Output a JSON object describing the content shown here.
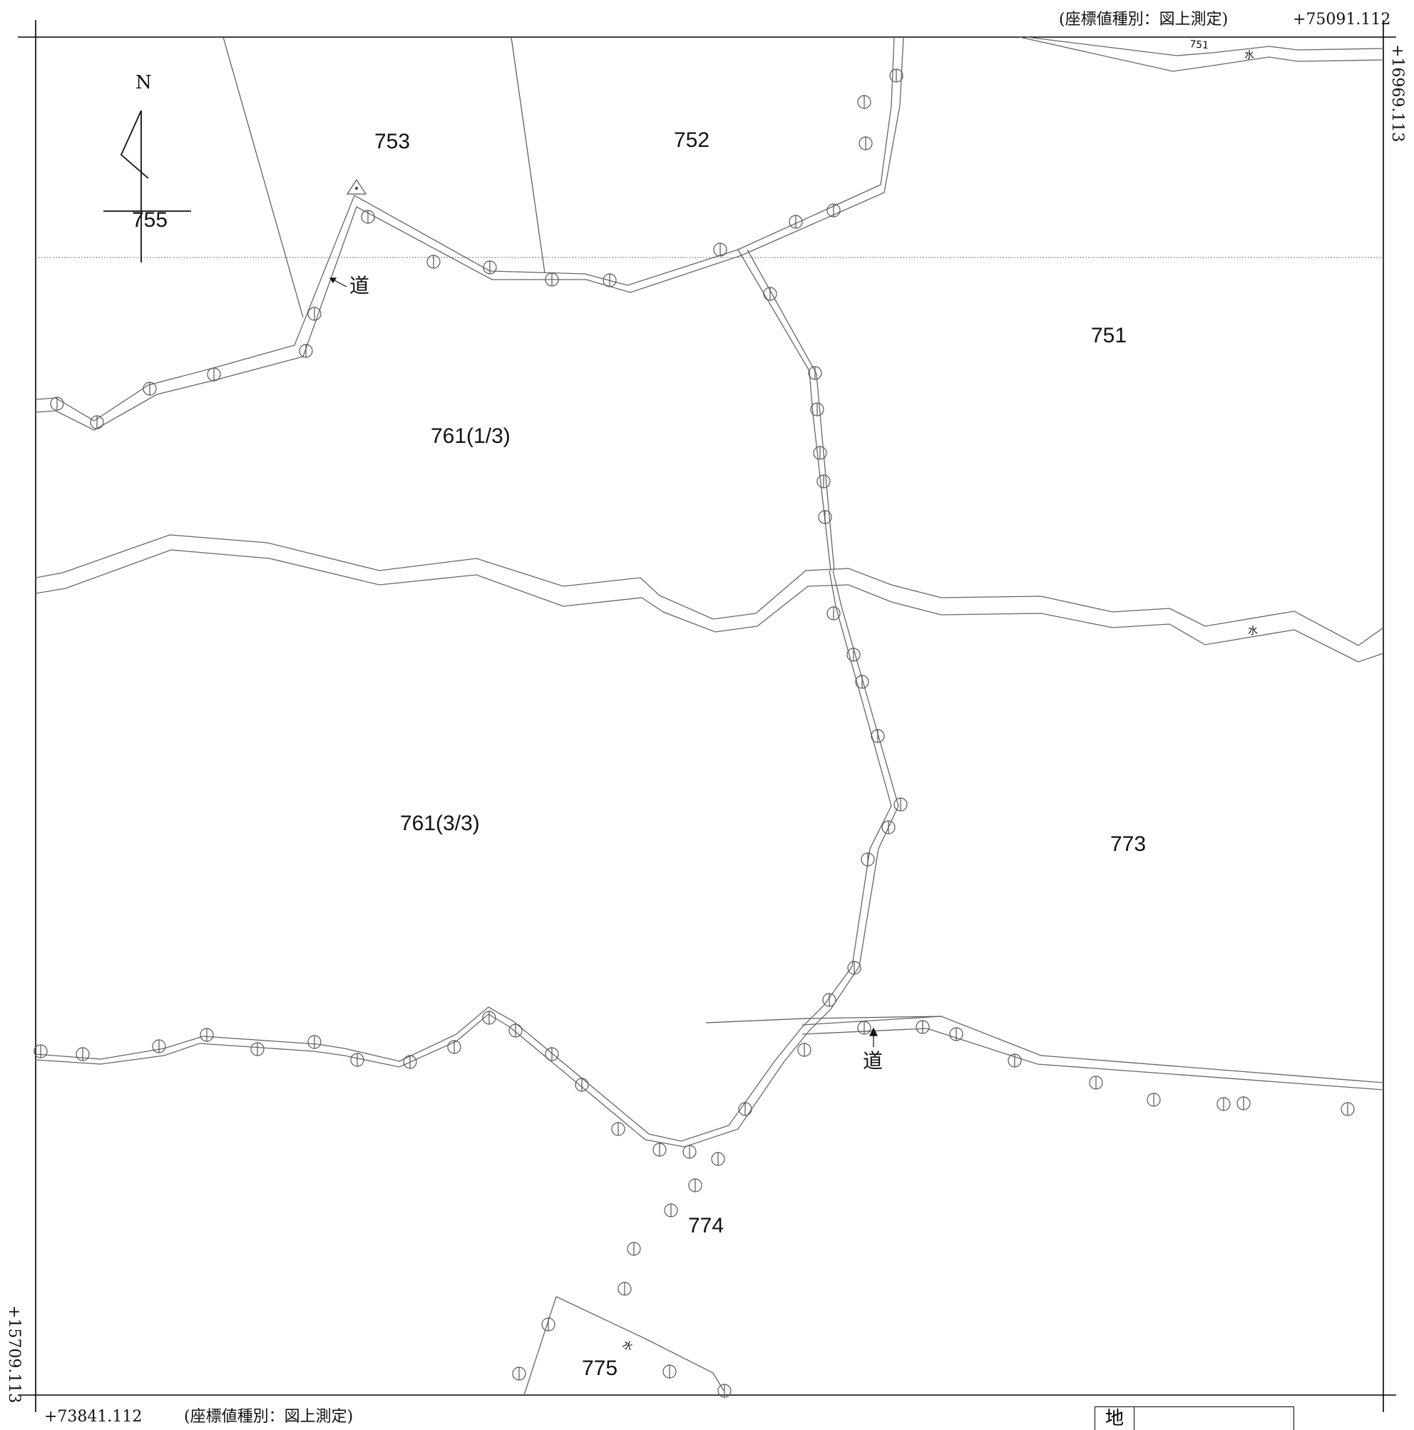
{
  "header": {
    "coord_type_top": "(座標値種別：図上測定)",
    "coord_top_x": "+75091.112",
    "coord_right_y": "+16969.113"
  },
  "footer": {
    "coord_bottom_x": "+73841.112",
    "coord_type_bottom": "(座標値種別：図上測定)",
    "coord_left_y": "+15709.113"
  },
  "north_arrow": {
    "label": "N"
  },
  "parcels": {
    "p755": "755",
    "p753": "753",
    "p752": "752",
    "p751": "751",
    "p761a": "761(1/3)",
    "p761c": "761(3/3)",
    "p773": "773",
    "p774": "774",
    "p775": "775",
    "p751_small": "751"
  },
  "feature_labels": {
    "road_1": "道",
    "road_2": "道",
    "water_1": "水",
    "water_2": "水",
    "water_3": "水"
  },
  "legend": {
    "cell_label": "地"
  }
}
